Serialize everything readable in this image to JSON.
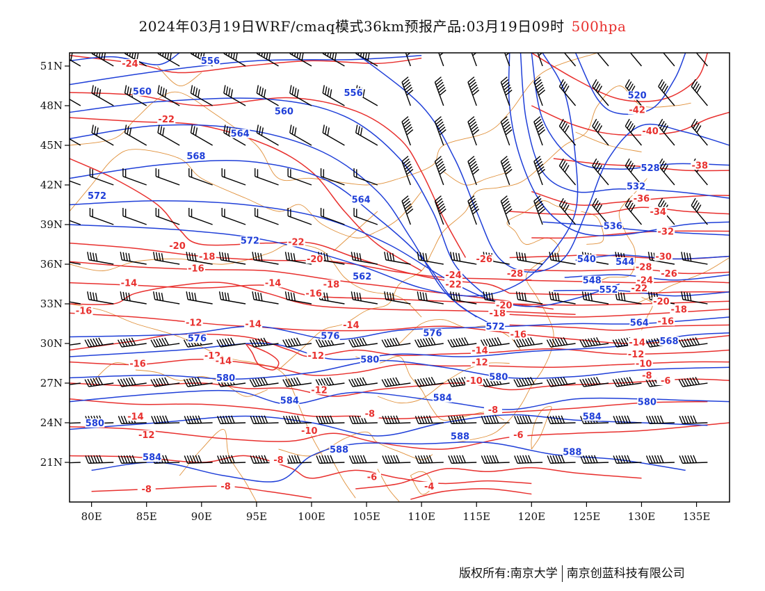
{
  "header": {
    "title": "2024年03月19日WRF/cmaq模式36km预报产品:03月19日09时",
    "level": "500hpa"
  },
  "axes": {
    "x_ticks": [
      "80E",
      "85E",
      "90E",
      "95E",
      "100E",
      "105E",
      "110E",
      "115E",
      "120E",
      "125E",
      "130E",
      "135E"
    ],
    "y_ticks": [
      "51N",
      "48N",
      "45N",
      "42N",
      "39N",
      "36N",
      "33N",
      "30N",
      "27N",
      "24N",
      "21N"
    ],
    "lon_range": [
      78,
      138
    ],
    "lat_range": [
      18,
      52
    ]
  },
  "colors": {
    "height_contour": "#1f3fd8",
    "temperature_contour": "#e8302e",
    "border": "#e0903a",
    "wind_barb": "#000000"
  },
  "height_labels": [
    {
      "text": "556",
      "lon": 90.8,
      "lat": 51.2
    },
    {
      "text": "556",
      "lon": 103.8,
      "lat": 48.8
    },
    {
      "text": "560",
      "lon": 84.6,
      "lat": 48.9
    },
    {
      "text": "560",
      "lon": 97.5,
      "lat": 47.4
    },
    {
      "text": "564",
      "lon": 93.5,
      "lat": 45.7
    },
    {
      "text": "568",
      "lon": 89.5,
      "lat": 44.0
    },
    {
      "text": "572",
      "lon": 80.5,
      "lat": 41.0
    },
    {
      "text": "564",
      "lon": 104.5,
      "lat": 40.7
    },
    {
      "text": "572",
      "lon": 94.4,
      "lat": 37.6
    },
    {
      "text": "520",
      "lon": 129.6,
      "lat": 48.6
    },
    {
      "text": "528",
      "lon": 130.8,
      "lat": 43.1
    },
    {
      "text": "532",
      "lon": 129.5,
      "lat": 41.7
    },
    {
      "text": "536",
      "lon": 127.4,
      "lat": 38.7
    },
    {
      "text": "540",
      "lon": 125.0,
      "lat": 36.2
    },
    {
      "text": "544",
      "lon": 128.5,
      "lat": 36.0
    },
    {
      "text": "548",
      "lon": 125.5,
      "lat": 34.6
    },
    {
      "text": "552",
      "lon": 127.0,
      "lat": 33.9
    },
    {
      "text": "562",
      "lon": 104.6,
      "lat": 34.9
    },
    {
      "text": "576",
      "lon": 89.6,
      "lat": 30.2
    },
    {
      "text": "576",
      "lon": 101.7,
      "lat": 30.4
    },
    {
      "text": "576",
      "lon": 111.0,
      "lat": 30.6
    },
    {
      "text": "572",
      "lon": 116.7,
      "lat": 31.1
    },
    {
      "text": "564",
      "lon": 129.8,
      "lat": 31.4
    },
    {
      "text": "568",
      "lon": 132.5,
      "lat": 30.0
    },
    {
      "text": "580",
      "lon": 92.2,
      "lat": 27.2
    },
    {
      "text": "580",
      "lon": 105.3,
      "lat": 28.6
    },
    {
      "text": "580",
      "lon": 117.0,
      "lat": 27.3
    },
    {
      "text": "584",
      "lon": 98.0,
      "lat": 25.5
    },
    {
      "text": "584",
      "lon": 111.9,
      "lat": 25.7
    },
    {
      "text": "584",
      "lon": 125.5,
      "lat": 24.3
    },
    {
      "text": "580",
      "lon": 130.5,
      "lat": 25.4
    },
    {
      "text": "580",
      "lon": 80.3,
      "lat": 23.8
    },
    {
      "text": "588",
      "lon": 102.5,
      "lat": 21.8
    },
    {
      "text": "588",
      "lon": 113.5,
      "lat": 22.8
    },
    {
      "text": "588",
      "lon": 123.7,
      "lat": 21.6
    },
    {
      "text": "584",
      "lon": 85.5,
      "lat": 21.2
    }
  ],
  "temperature_labels": [
    {
      "text": "-24",
      "lon": 83.5,
      "lat": 51.0
    },
    {
      "text": "-22",
      "lon": 86.8,
      "lat": 46.8
    },
    {
      "text": "-20",
      "lon": 87.8,
      "lat": 37.2
    },
    {
      "text": "-22",
      "lon": 98.6,
      "lat": 37.5
    },
    {
      "text": "-18",
      "lon": 90.5,
      "lat": 36.4
    },
    {
      "text": "-16",
      "lon": 89.5,
      "lat": 35.5
    },
    {
      "text": "-20",
      "lon": 100.3,
      "lat": 36.2
    },
    {
      "text": "-14",
      "lon": 83.4,
      "lat": 34.4
    },
    {
      "text": "-14",
      "lon": 96.5,
      "lat": 34.4
    },
    {
      "text": "-18",
      "lon": 101.8,
      "lat": 34.3
    },
    {
      "text": "-16",
      "lon": 100.2,
      "lat": 33.6
    },
    {
      "text": "-16",
      "lon": 79.3,
      "lat": 32.3
    },
    {
      "text": "-12",
      "lon": 89.3,
      "lat": 31.4
    },
    {
      "text": "-14",
      "lon": 94.7,
      "lat": 31.3
    },
    {
      "text": "-12",
      "lon": 91.0,
      "lat": 28.9
    },
    {
      "text": "-14",
      "lon": 92.0,
      "lat": 28.5
    },
    {
      "text": "-16",
      "lon": 84.2,
      "lat": 28.3
    },
    {
      "text": "-12",
      "lon": 100.4,
      "lat": 28.9
    },
    {
      "text": "-14",
      "lon": 103.6,
      "lat": 31.2
    },
    {
      "text": "-12",
      "lon": 100.7,
      "lat": 26.3
    },
    {
      "text": "-14",
      "lon": 84.0,
      "lat": 24.3
    },
    {
      "text": "-12",
      "lon": 85.0,
      "lat": 22.9
    },
    {
      "text": "-10",
      "lon": 99.8,
      "lat": 23.2
    },
    {
      "text": "-8",
      "lon": 105.3,
      "lat": 24.5
    },
    {
      "text": "-8",
      "lon": 97.0,
      "lat": 21.0
    },
    {
      "text": "-8",
      "lon": 85.0,
      "lat": 18.8
    },
    {
      "text": "-8",
      "lon": 92.2,
      "lat": 19.0
    },
    {
      "text": "-6",
      "lon": 105.5,
      "lat": 19.7
    },
    {
      "text": "-4",
      "lon": 110.7,
      "lat": 19.0
    },
    {
      "text": "-6",
      "lon": 118.8,
      "lat": 22.9
    },
    {
      "text": "-8",
      "lon": 116.5,
      "lat": 24.8
    },
    {
      "text": "-10",
      "lon": 114.8,
      "lat": 27.0
    },
    {
      "text": "-12",
      "lon": 115.3,
      "lat": 28.4
    },
    {
      "text": "-14",
      "lon": 115.3,
      "lat": 29.3
    },
    {
      "text": "-16",
      "lon": 118.8,
      "lat": 30.5
    },
    {
      "text": "-18",
      "lon": 116.9,
      "lat": 32.1
    },
    {
      "text": "-20",
      "lon": 117.5,
      "lat": 32.7
    },
    {
      "text": "-22",
      "lon": 112.9,
      "lat": 34.3
    },
    {
      "text": "-24",
      "lon": 112.9,
      "lat": 35.0
    },
    {
      "text": "-26",
      "lon": 115.7,
      "lat": 36.2
    },
    {
      "text": "-28",
      "lon": 118.5,
      "lat": 35.1
    },
    {
      "text": "-42",
      "lon": 129.6,
      "lat": 47.5
    },
    {
      "text": "-40",
      "lon": 130.8,
      "lat": 45.9
    },
    {
      "text": "-38",
      "lon": 135.3,
      "lat": 43.3
    },
    {
      "text": "-36",
      "lon": 130.0,
      "lat": 40.8
    },
    {
      "text": "-34",
      "lon": 131.5,
      "lat": 39.8
    },
    {
      "text": "-32",
      "lon": 132.2,
      "lat": 38.3
    },
    {
      "text": "-30",
      "lon": 132.0,
      "lat": 36.4
    },
    {
      "text": "-28",
      "lon": 130.2,
      "lat": 35.6
    },
    {
      "text": "-26",
      "lon": 132.5,
      "lat": 35.1
    },
    {
      "text": "-24",
      "lon": 130.3,
      "lat": 34.6
    },
    {
      "text": "-22",
      "lon": 129.8,
      "lat": 34.0
    },
    {
      "text": "-20",
      "lon": 131.8,
      "lat": 33.0
    },
    {
      "text": "-18",
      "lon": 133.4,
      "lat": 32.4
    },
    {
      "text": "-16",
      "lon": 132.2,
      "lat": 31.5
    },
    {
      "text": "-14",
      "lon": 129.6,
      "lat": 29.9
    },
    {
      "text": "-12",
      "lon": 129.5,
      "lat": 29.0
    },
    {
      "text": "-10",
      "lon": 130.2,
      "lat": 28.3
    },
    {
      "text": "-8",
      "lon": 130.5,
      "lat": 27.4
    },
    {
      "text": "-6",
      "lon": 132.2,
      "lat": 27.0
    }
  ],
  "footer": {
    "left": "版权所有:南京大学",
    "right": "南京创蓝科技有限公司"
  }
}
